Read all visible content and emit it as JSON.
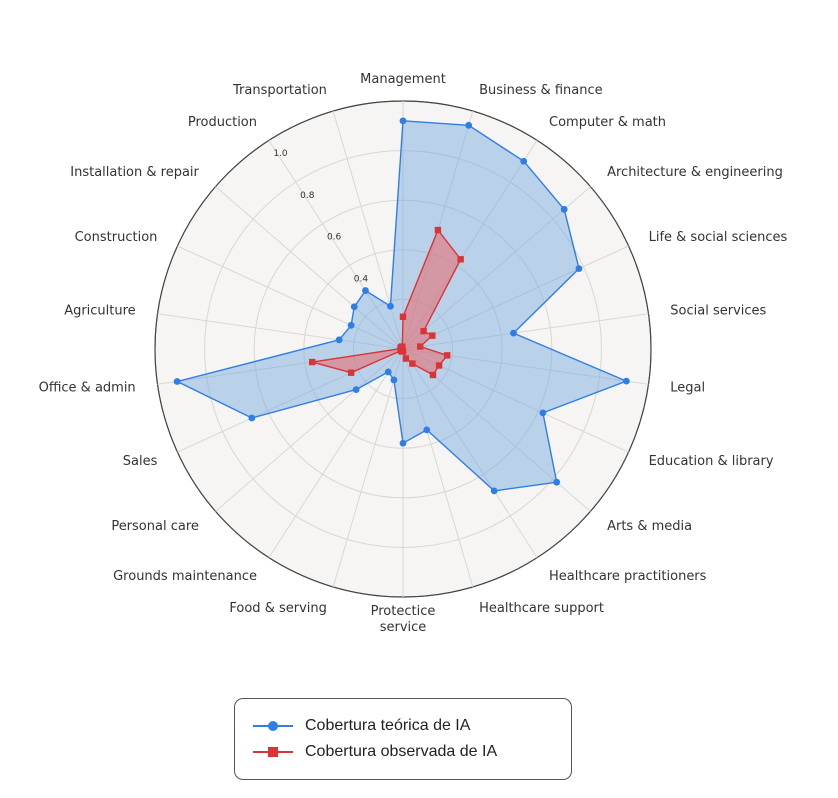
{
  "chart_data": {
    "type": "radar",
    "categories": [
      "Management",
      "Business & finance",
      "Computer & math",
      "Architecture & engineering",
      "Life & social sciences",
      "Social services",
      "Legal",
      "Education & library",
      "Arts & media",
      "Healthcare practitioners",
      "Healthcare support",
      "Protectice\nservice",
      "Food & serving",
      "Grounds maintenance",
      "Personal care",
      "Sales",
      "Office & admin",
      "Agriculture",
      "Construction",
      "Installation & repair",
      "Production",
      "Transportation"
    ],
    "rlim": [
      0,
      1.0
    ],
    "r_ticks": [
      "0.4",
      "0.6",
      "0.8",
      "1.0"
    ],
    "r_tick_values": [
      0.4,
      0.6,
      0.8,
      1.0
    ],
    "series": [
      {
        "name": "Cobertura teórica de IA",
        "color": "#2f7ee6",
        "marker": "circle",
        "values": [
          0.92,
          0.94,
          0.9,
          0.86,
          0.78,
          0.45,
          0.91,
          0.62,
          0.82,
          0.68,
          0.34,
          0.38,
          0.13,
          0.11,
          0.25,
          0.67,
          0.92,
          0.26,
          0.23,
          0.26,
          0.28,
          0.18
        ]
      },
      {
        "name": "Cobertura observada de IA",
        "color": "#d93436",
        "marker": "square",
        "values": [
          0.13,
          0.5,
          0.43,
          0.11,
          0.13,
          0.07,
          0.18,
          0.16,
          0.16,
          0.07,
          0.04,
          0.01,
          0.01,
          0.01,
          0.01,
          0.23,
          0.37,
          0.01,
          0.01,
          0.01,
          0.01,
          0.01
        ]
      }
    ],
    "grid": true,
    "legend_position": "bottom-center"
  }
}
